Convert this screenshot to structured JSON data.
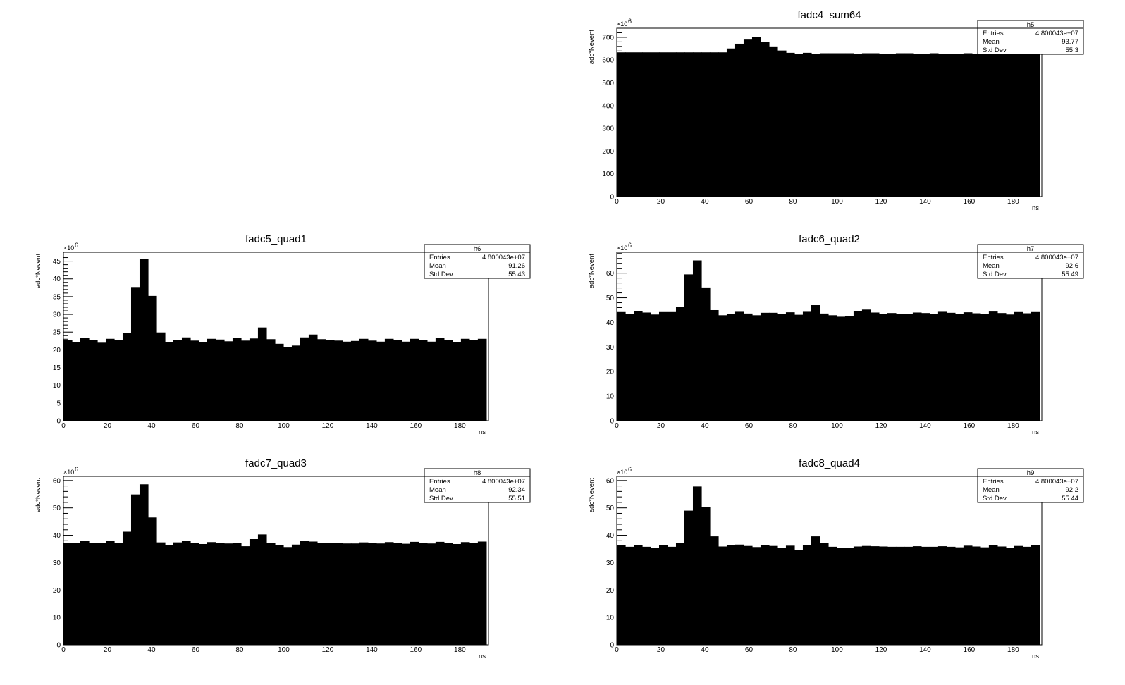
{
  "page": {
    "background": "#ffffff",
    "fill_color": "#000000"
  },
  "chart_data": [
    {
      "type": "bar",
      "title": "fadc4_sum64",
      "xlabel": "ns",
      "ylabel": "adc*Nevent",
      "y_exponent_base": "×10",
      "y_exponent_power": "6",
      "xlim": [
        0,
        193
      ],
      "ylim": [
        0,
        740
      ],
      "bin_width": 3.84,
      "x_ticks": [
        0,
        20,
        40,
        60,
        80,
        100,
        120,
        140,
        160,
        180
      ],
      "y_ticks": [
        0,
        100,
        200,
        300,
        400,
        500,
        600,
        700
      ],
      "values": [
        634,
        634,
        634,
        634,
        634,
        634,
        634,
        634,
        634,
        634,
        634,
        634,
        634,
        651,
        672,
        690,
        700,
        680,
        660,
        642,
        632,
        628,
        632,
        628,
        630,
        630,
        630,
        630,
        628,
        630,
        630,
        628,
        628,
        630,
        630,
        628,
        626,
        630,
        628,
        628,
        628,
        630,
        628,
        628,
        630,
        628,
        630,
        628,
        630,
        630
      ],
      "stats": {
        "name": "h5",
        "rows": [
          {
            "label": "Entries",
            "value": "4.800043e+07"
          },
          {
            "label": "Mean",
            "value": "93.77"
          },
          {
            "label": "Std Dev",
            "value": "55.3"
          }
        ]
      }
    },
    {
      "type": "bar",
      "title": "fadc5_quad1",
      "xlabel": "ns",
      "ylabel": "adc*Nevent",
      "y_exponent_base": "×10",
      "y_exponent_power": "6",
      "xlim": [
        0,
        193
      ],
      "ylim": [
        0,
        47.5
      ],
      "bin_width": 3.84,
      "x_ticks": [
        0,
        20,
        40,
        60,
        80,
        100,
        120,
        140,
        160,
        180
      ],
      "y_ticks": [
        0,
        5,
        10,
        15,
        20,
        25,
        30,
        35,
        40,
        45
      ],
      "values": [
        22.8,
        22.2,
        23.4,
        22.8,
        22.0,
        23.1,
        22.8,
        24.8,
        37.7,
        45.6,
        35.2,
        24.9,
        22.1,
        22.8,
        23.5,
        22.6,
        22.1,
        23.1,
        22.9,
        22.4,
        23.3,
        22.6,
        23.2,
        26.3,
        23.0,
        21.7,
        20.8,
        21.2,
        23.5,
        24.3,
        23.0,
        22.7,
        22.6,
        22.3,
        22.5,
        23.1,
        22.6,
        22.3,
        23.1,
        22.8,
        22.3,
        23.1,
        22.7,
        22.3,
        23.3,
        22.7,
        22.2,
        23.1,
        22.7,
        23.1
      ],
      "stats": {
        "name": "h6",
        "rows": [
          {
            "label": "Entries",
            "value": "4.800043e+07"
          },
          {
            "label": "Mean",
            "value": "91.26"
          },
          {
            "label": "Std Dev",
            "value": "55.43"
          }
        ]
      }
    },
    {
      "type": "bar",
      "title": "fadc6_quad2",
      "xlabel": "ns",
      "ylabel": "adc*Nevent",
      "y_exponent_base": "×10",
      "y_exponent_power": "6",
      "xlim": [
        0,
        193
      ],
      "ylim": [
        0,
        68.5
      ],
      "bin_width": 3.84,
      "x_ticks": [
        0,
        20,
        40,
        60,
        80,
        100,
        120,
        140,
        160,
        180
      ],
      "y_ticks": [
        0,
        10,
        20,
        30,
        40,
        50,
        60
      ],
      "values": [
        44.2,
        43.3,
        44.5,
        44.0,
        43.2,
        44.2,
        44.2,
        46.4,
        59.5,
        65.2,
        54.2,
        45.0,
        42.9,
        43.3,
        44.3,
        43.6,
        42.9,
        43.9,
        43.9,
        43.5,
        44.1,
        43.1,
        44.3,
        47.0,
        43.6,
        42.9,
        42.3,
        42.6,
        44.6,
        45.2,
        44.0,
        43.3,
        43.8,
        43.3,
        43.4,
        44.0,
        43.8,
        43.4,
        44.3,
        43.9,
        43.3,
        44.1,
        43.7,
        43.3,
        44.4,
        43.8,
        43.2,
        44.2,
        43.7,
        44.2
      ],
      "stats": {
        "name": "h7",
        "rows": [
          {
            "label": "Entries",
            "value": "4.800043e+07"
          },
          {
            "label": "Mean",
            "value": "92.6"
          },
          {
            "label": "Std Dev",
            "value": "55.49"
          }
        ]
      }
    },
    {
      "type": "bar",
      "title": "fadc7_quad3",
      "xlabel": "ns",
      "ylabel": "adc*Nevent",
      "y_exponent_base": "×10",
      "y_exponent_power": "6",
      "xlim": [
        0,
        193
      ],
      "ylim": [
        0,
        61.5
      ],
      "bin_width": 3.84,
      "x_ticks": [
        0,
        20,
        40,
        60,
        80,
        100,
        120,
        140,
        160,
        180
      ],
      "y_ticks": [
        0,
        10,
        20,
        30,
        40,
        50,
        60
      ],
      "values": [
        37.3,
        37.3,
        37.9,
        37.3,
        37.3,
        37.9,
        37.3,
        41.3,
        54.9,
        58.6,
        46.5,
        37.4,
        36.5,
        37.4,
        37.9,
        37.2,
        36.8,
        37.5,
        37.3,
        37.0,
        37.3,
        36.0,
        38.6,
        40.3,
        37.2,
        36.3,
        35.7,
        36.6,
        37.9,
        37.7,
        37.2,
        37.2,
        37.2,
        37.0,
        37.0,
        37.4,
        37.3,
        37.0,
        37.5,
        37.2,
        36.9,
        37.6,
        37.2,
        37.0,
        37.6,
        37.2,
        36.8,
        37.5,
        37.2,
        37.7
      ],
      "stats": {
        "name": "h8",
        "rows": [
          {
            "label": "Entries",
            "value": "4.800043e+07"
          },
          {
            "label": "Mean",
            "value": "92.34"
          },
          {
            "label": "Std Dev",
            "value": "55.51"
          }
        ]
      }
    },
    {
      "type": "bar",
      "title": "fadc8_quad4",
      "xlabel": "ns",
      "ylabel": "adc*Nevent",
      "y_exponent_base": "×10",
      "y_exponent_power": "6",
      "xlim": [
        0,
        193
      ],
      "ylim": [
        0,
        61.5
      ],
      "bin_width": 3.84,
      "x_ticks": [
        0,
        20,
        40,
        60,
        80,
        100,
        120,
        140,
        160,
        180
      ],
      "y_ticks": [
        0,
        10,
        20,
        30,
        40,
        50,
        60
      ],
      "values": [
        36.3,
        35.8,
        36.4,
        35.8,
        35.5,
        36.3,
        35.8,
        37.3,
        49.0,
        57.8,
        50.3,
        39.6,
        35.9,
        36.3,
        36.6,
        36.1,
        35.7,
        36.5,
        36.1,
        35.5,
        36.2,
        34.7,
        36.4,
        39.6,
        37.1,
        35.8,
        35.5,
        35.5,
        35.9,
        36.1,
        36.0,
        35.9,
        35.8,
        35.8,
        35.8,
        36.0,
        35.8,
        35.8,
        36.0,
        35.8,
        35.6,
        36.2,
        35.9,
        35.6,
        36.3,
        35.9,
        35.5,
        36.1,
        35.8,
        36.3
      ],
      "stats": {
        "name": "h9",
        "rows": [
          {
            "label": "Entries",
            "value": "4.800043e+07"
          },
          {
            "label": "Mean",
            "value": "92.2"
          },
          {
            "label": "Std Dev",
            "value": "55.44"
          }
        ]
      }
    }
  ]
}
